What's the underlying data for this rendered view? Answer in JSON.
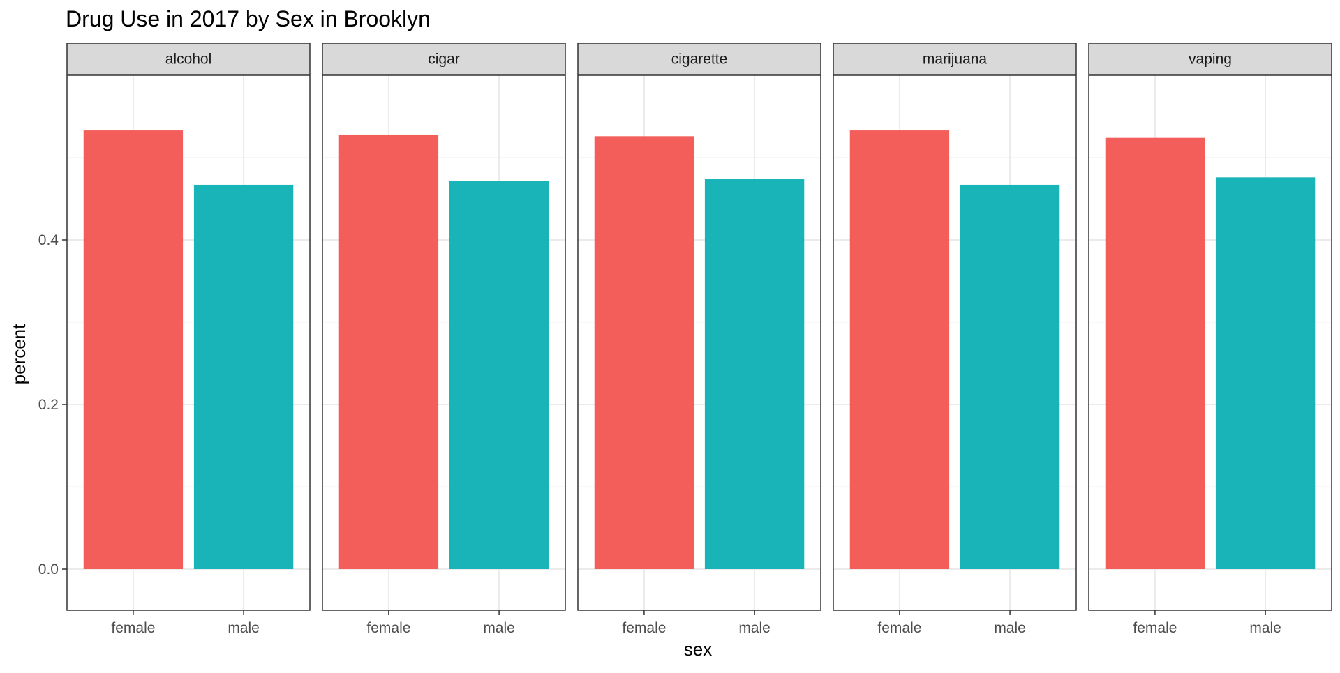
{
  "chart_data": {
    "type": "bar",
    "title": "Drug Use in 2017 by Sex in Brooklyn",
    "xlabel": "sex",
    "ylabel": "percent",
    "categories": [
      "female",
      "male"
    ],
    "category_colors": {
      "female": "#F35E5A",
      "male": "#18B4B7"
    },
    "ylim": [
      -0.05,
      0.6
    ],
    "y_ticks": [
      0.0,
      0.2,
      0.4
    ],
    "y_tick_labels": [
      "0.0",
      "0.2",
      "0.4"
    ],
    "grid": true,
    "legend": "none",
    "facets": [
      {
        "label": "alcohol",
        "values": [
          0.533,
          0.467
        ]
      },
      {
        "label": "cigar",
        "values": [
          0.528,
          0.472
        ]
      },
      {
        "label": "cigarette",
        "values": [
          0.526,
          0.474
        ]
      },
      {
        "label": "marijuana",
        "values": [
          0.533,
          0.467
        ]
      },
      {
        "label": "vaping",
        "values": [
          0.524,
          0.476
        ]
      }
    ]
  },
  "theme": {
    "panel_border": "#333333",
    "grid_major": "#EBEBEB",
    "grid_minor": "#F3F3F3",
    "strip_fill": "#D9D9D9",
    "tick_color": "#333333"
  }
}
